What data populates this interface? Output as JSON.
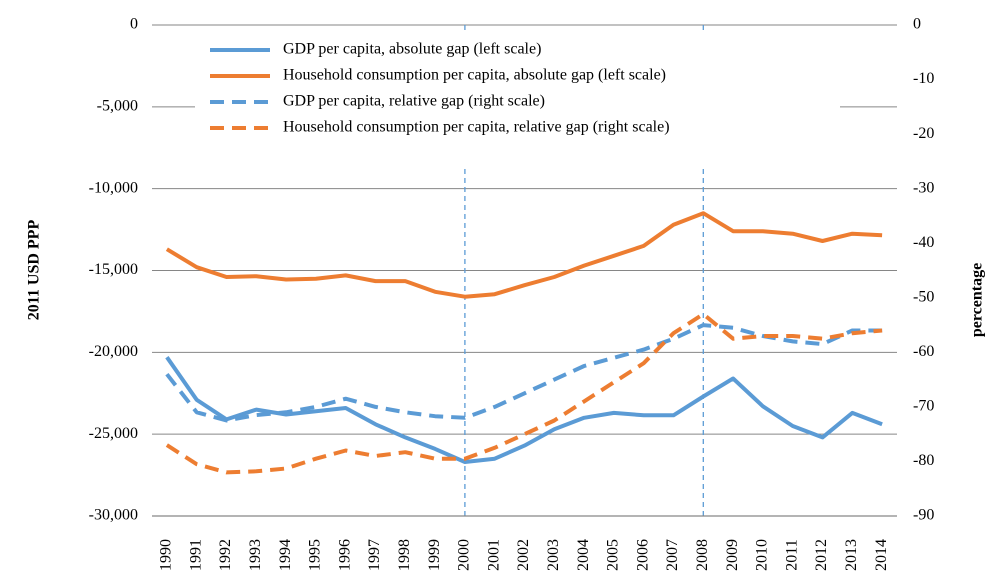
{
  "chart_data": {
    "type": "line",
    "ylabel": "2011 USD PPP",
    "y2label": "percentage",
    "categories": [
      "1990",
      "1991",
      "1992",
      "1993",
      "1994",
      "1995",
      "1996",
      "1997",
      "1998",
      "1999",
      "2000",
      "2001",
      "2002",
      "2003",
      "2004",
      "2005",
      "2006",
      "2007",
      "2008",
      "2009",
      "2010",
      "2011",
      "2012",
      "2013",
      "2014"
    ],
    "series": [
      {
        "name": "GDP per capita, absolute gap (left scale)",
        "color": "#5b9bd5",
        "dashed": false,
        "values": [
          -20300,
          -22900,
          -24100,
          -23500,
          -23800,
          -23600,
          -23400,
          -24400,
          -25200,
          -25900,
          -26700,
          -26500,
          -25700,
          -24700,
          -24000,
          -23700,
          -23850,
          -23850,
          -22700,
          -21600,
          -23300,
          -24500,
          -25200,
          -23700,
          -24400
        ]
      },
      {
        "name": "Household consumption per capita, absolute gap (left scale)",
        "color": "#ed7d31",
        "dashed": false,
        "values": [
          -13700,
          -14800,
          -15400,
          -15350,
          -15550,
          -15500,
          -15300,
          -15650,
          -15650,
          -16300,
          -16600,
          -16450,
          -15900,
          -15400,
          -14700,
          -14100,
          -13500,
          -12200,
          -11500,
          -12600,
          -12600,
          -12750,
          -13200,
          -12750,
          -12850
        ]
      },
      {
        "name": "GDP per capita, relative gap (right scale)",
        "color": "#5b9bd5",
        "dashed": true,
        "axis": "y2",
        "values": [
          -64,
          -71,
          -72.5,
          -71.5,
          -71,
          -70,
          -68.5,
          -70,
          -71,
          -71.7,
          -72,
          -70,
          -67.5,
          -65,
          -62.5,
          -61,
          -59.5,
          -57.5,
          -55,
          -55.5,
          -57,
          -58,
          -58.5,
          -56,
          -56
        ]
      },
      {
        "name": "Household consumption per capita, relative gap (right scale)",
        "color": "#ed7d31",
        "dashed": true,
        "axis": "y2",
        "values": [
          -77,
          -80.5,
          -82,
          -81.8,
          -81.3,
          -79.5,
          -78,
          -79,
          -78.3,
          -79.5,
          -79.5,
          -77.5,
          -75,
          -72.5,
          -69,
          -65.5,
          -62,
          -56.5,
          -53,
          -57.5,
          -57,
          -57,
          -57.5,
          -56.5,
          -56
        ]
      }
    ],
    "ylim": [
      -30000,
      0
    ],
    "yticks": [
      {
        "value": -30000,
        "label": "-30,000"
      },
      {
        "value": -25000,
        "label": "-25,000"
      },
      {
        "value": -20000,
        "label": "-20,000"
      },
      {
        "value": -15000,
        "label": "-15,000"
      },
      {
        "value": -10000,
        "label": "-10,000"
      },
      {
        "value": -5000,
        "label": "-5,000"
      },
      0
    ],
    "y2lim": [
      -90,
      0
    ],
    "y2ticks": [
      -90,
      -80,
      -70,
      -60,
      -50,
      -40,
      -30,
      -20,
      -10,
      0
    ],
    "vlines": [
      "2000",
      "2008"
    ],
    "vline_color": "#5b9bd5",
    "grid": true,
    "legend": "top-left"
  }
}
